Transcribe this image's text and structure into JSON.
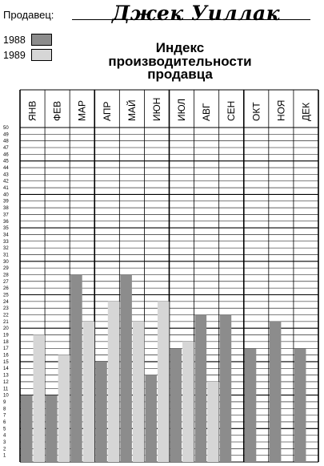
{
  "seller": {
    "label": "Продавец:",
    "name": "Джек Уиллак"
  },
  "legend": [
    {
      "label": "1988",
      "color": "#8c8c8c"
    },
    {
      "label": "1989",
      "color": "#d6d6d6"
    }
  ],
  "title_lines": [
    "Индекс",
    "производительности",
    "продавца"
  ],
  "chart_data": {
    "type": "bar",
    "title": "Индекс производительности продавца",
    "categories": [
      "ЯНВ",
      "ФЕВ",
      "МАР",
      "АПР",
      "МАЙ",
      "ИЮН",
      "ИЮЛ",
      "АВГ",
      "СЕН",
      "ОКТ",
      "НОЯ",
      "ДЕК"
    ],
    "series": [
      {
        "name": "1988",
        "color": "#8c8c8c",
        "values": [
          10,
          10,
          28,
          15,
          28,
          13,
          17,
          22,
          22,
          17,
          21,
          17
        ]
      },
      {
        "name": "1989",
        "color": "#d6d6d6",
        "values": [
          19,
          16,
          21,
          24,
          21,
          24,
          18,
          12,
          null,
          null,
          null,
          null
        ]
      }
    ],
    "ylim": [
      0,
      50
    ],
    "yticks": [
      1,
      2,
      3,
      4,
      5,
      6,
      7,
      8,
      9,
      10,
      11,
      12,
      13,
      14,
      15,
      16,
      17,
      18,
      19,
      20,
      21,
      22,
      23,
      24,
      25,
      26,
      27,
      28,
      29,
      30,
      31,
      32,
      33,
      34,
      35,
      36,
      37,
      38,
      39,
      40,
      41,
      42,
      43,
      44,
      45,
      46,
      47,
      48,
      49,
      50
    ],
    "grid": true
  }
}
